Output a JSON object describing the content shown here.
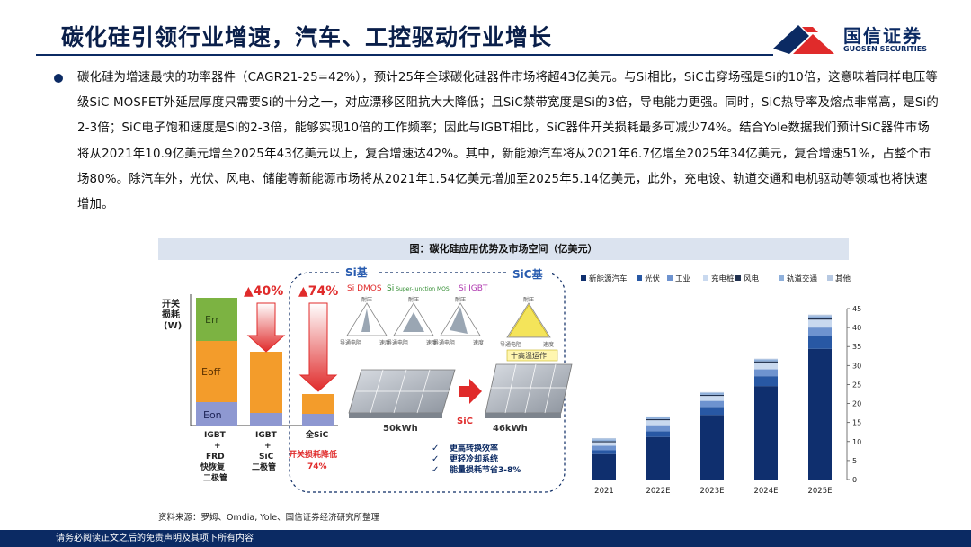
{
  "header": {
    "title": "碳化硅引领行业增速，汽车、工控驱动行业增长",
    "logo_cn": "国信证券",
    "logo_en": "GUOSEN SECURITIES"
  },
  "body": {
    "paragraph": "碳化硅为增速最快的功率器件（CAGR21-25=42%），预计25年全球碳化硅器件市场将超43亿美元。与Si相比，SiC击穿场强是Si的10倍，这意味着同样电压等级SiC MOSFET外延层厚度只需要Si的十分之一，对应漂移区阻抗大大降低；且SiC禁带宽度是Si的3倍，导电能力更强。同时，SiC热导率及熔点非常高，是Si的2-3倍；SiC电子饱和速度是Si的2-3倍，能够实现10倍的工作频率；因此与IGBT相比，SiC器件开关损耗最多可减少74%。结合Yole数据我们预计SiC器件市场将从2021年10.9亿美元增至2025年43亿美元以上，复合增速达42%。其中，新能源汽车将从2021年6.7亿增至2025年34亿美元，复合增速51%，占整个市场80%。除汽车外，光伏、风电、储能等新能源市场将从2021年1.54亿美元增加至2025年5.14亿美元，此外，充电设、轨道交通和电机驱动等领域也将快速增加。"
  },
  "figure": {
    "title": "图：碳化硅应用优势及市场空间（亿美元）",
    "source": "资料来源：罗姆、Omdia, Yole、国信证券经济研究所整理"
  },
  "illustration": {
    "y_label_1": "开关",
    "y_label_2": "损耗",
    "y_label_3": "(W)",
    "seg_err": "Err",
    "seg_eoff": "Eoff",
    "seg_eon": "Eon",
    "pct_40": "▲40%",
    "pct_74": "▲74%",
    "bar1_label": [
      "IGBT",
      "+",
      "FRD",
      "快恢复",
      "二极管"
    ],
    "bar2_label": [
      "IGBT",
      "+",
      "SiC",
      "二极管"
    ],
    "bar3_label": "全SiC",
    "loss_note": "开关损耗降低",
    "loss_pct": "74%",
    "si_base": "Si基",
    "sic_base": "SiC基",
    "si_dmos": "Si DMOS",
    "si_sj": "Si",
    "si_sj_small": "Super-Junction MOS",
    "si_igbt": "Si IGBT",
    "radar_top": "耐压",
    "radar_left": "导通电阻",
    "radar_right": "速度",
    "high_temp": "十高温运作",
    "kwh_50": "50kWh",
    "kwh_46": "46kWh",
    "sic_tag": "SiC",
    "benefits": [
      "更高转换效率",
      "更轻冷却系统",
      "能量损耗节省3-8%"
    ],
    "check": "✓"
  },
  "chart_data": {
    "type": "bar",
    "stacked": true,
    "categories": [
      "2021",
      "2022E",
      "2023E",
      "2024E",
      "2025E"
    ],
    "series": [
      {
        "name": "新能源汽车",
        "color": "#0f2f6e",
        "values": [
          6.7,
          11.2,
          17.0,
          24.6,
          34.4
        ]
      },
      {
        "name": "光伏",
        "color": "#2858a4",
        "values": [
          1.0,
          1.5,
          2.1,
          2.6,
          3.4
        ]
      },
      {
        "name": "工业",
        "color": "#6e93cf",
        "values": [
          1.2,
          1.6,
          1.6,
          1.8,
          2.2
        ]
      },
      {
        "name": "充电桩",
        "color": "#c9d9ef",
        "values": [
          0.9,
          1.3,
          1.3,
          1.8,
          2.1
        ]
      },
      {
        "name": "风电",
        "color": "#21314f",
        "values": [
          0.3,
          0.3,
          0.3,
          0.3,
          0.3
        ]
      },
      {
        "name": "轨道交通",
        "color": "#8fb0db",
        "values": [
          0.5,
          0.5,
          0.5,
          0.5,
          0.6
        ]
      },
      {
        "name": "其他",
        "color": "#b7c9e2",
        "values": [
          0.3,
          0.2,
          0.2,
          0.2,
          0.4
        ]
      }
    ],
    "yticks": [
      "0",
      "5",
      "10",
      "15",
      "20",
      "25",
      "30",
      "35",
      "40",
      "45"
    ],
    "ylim": [
      0,
      45
    ],
    "legend_position": "top"
  },
  "footer": {
    "disclaimer": "请务必阅读正文之后的免责声明及其项下所有内容"
  },
  "colors": {
    "navy": "#0b2a63",
    "red": "#e02b2b",
    "green": "#7cb342",
    "orange": "#f39c2b",
    "lavender": "#8e98d1"
  }
}
